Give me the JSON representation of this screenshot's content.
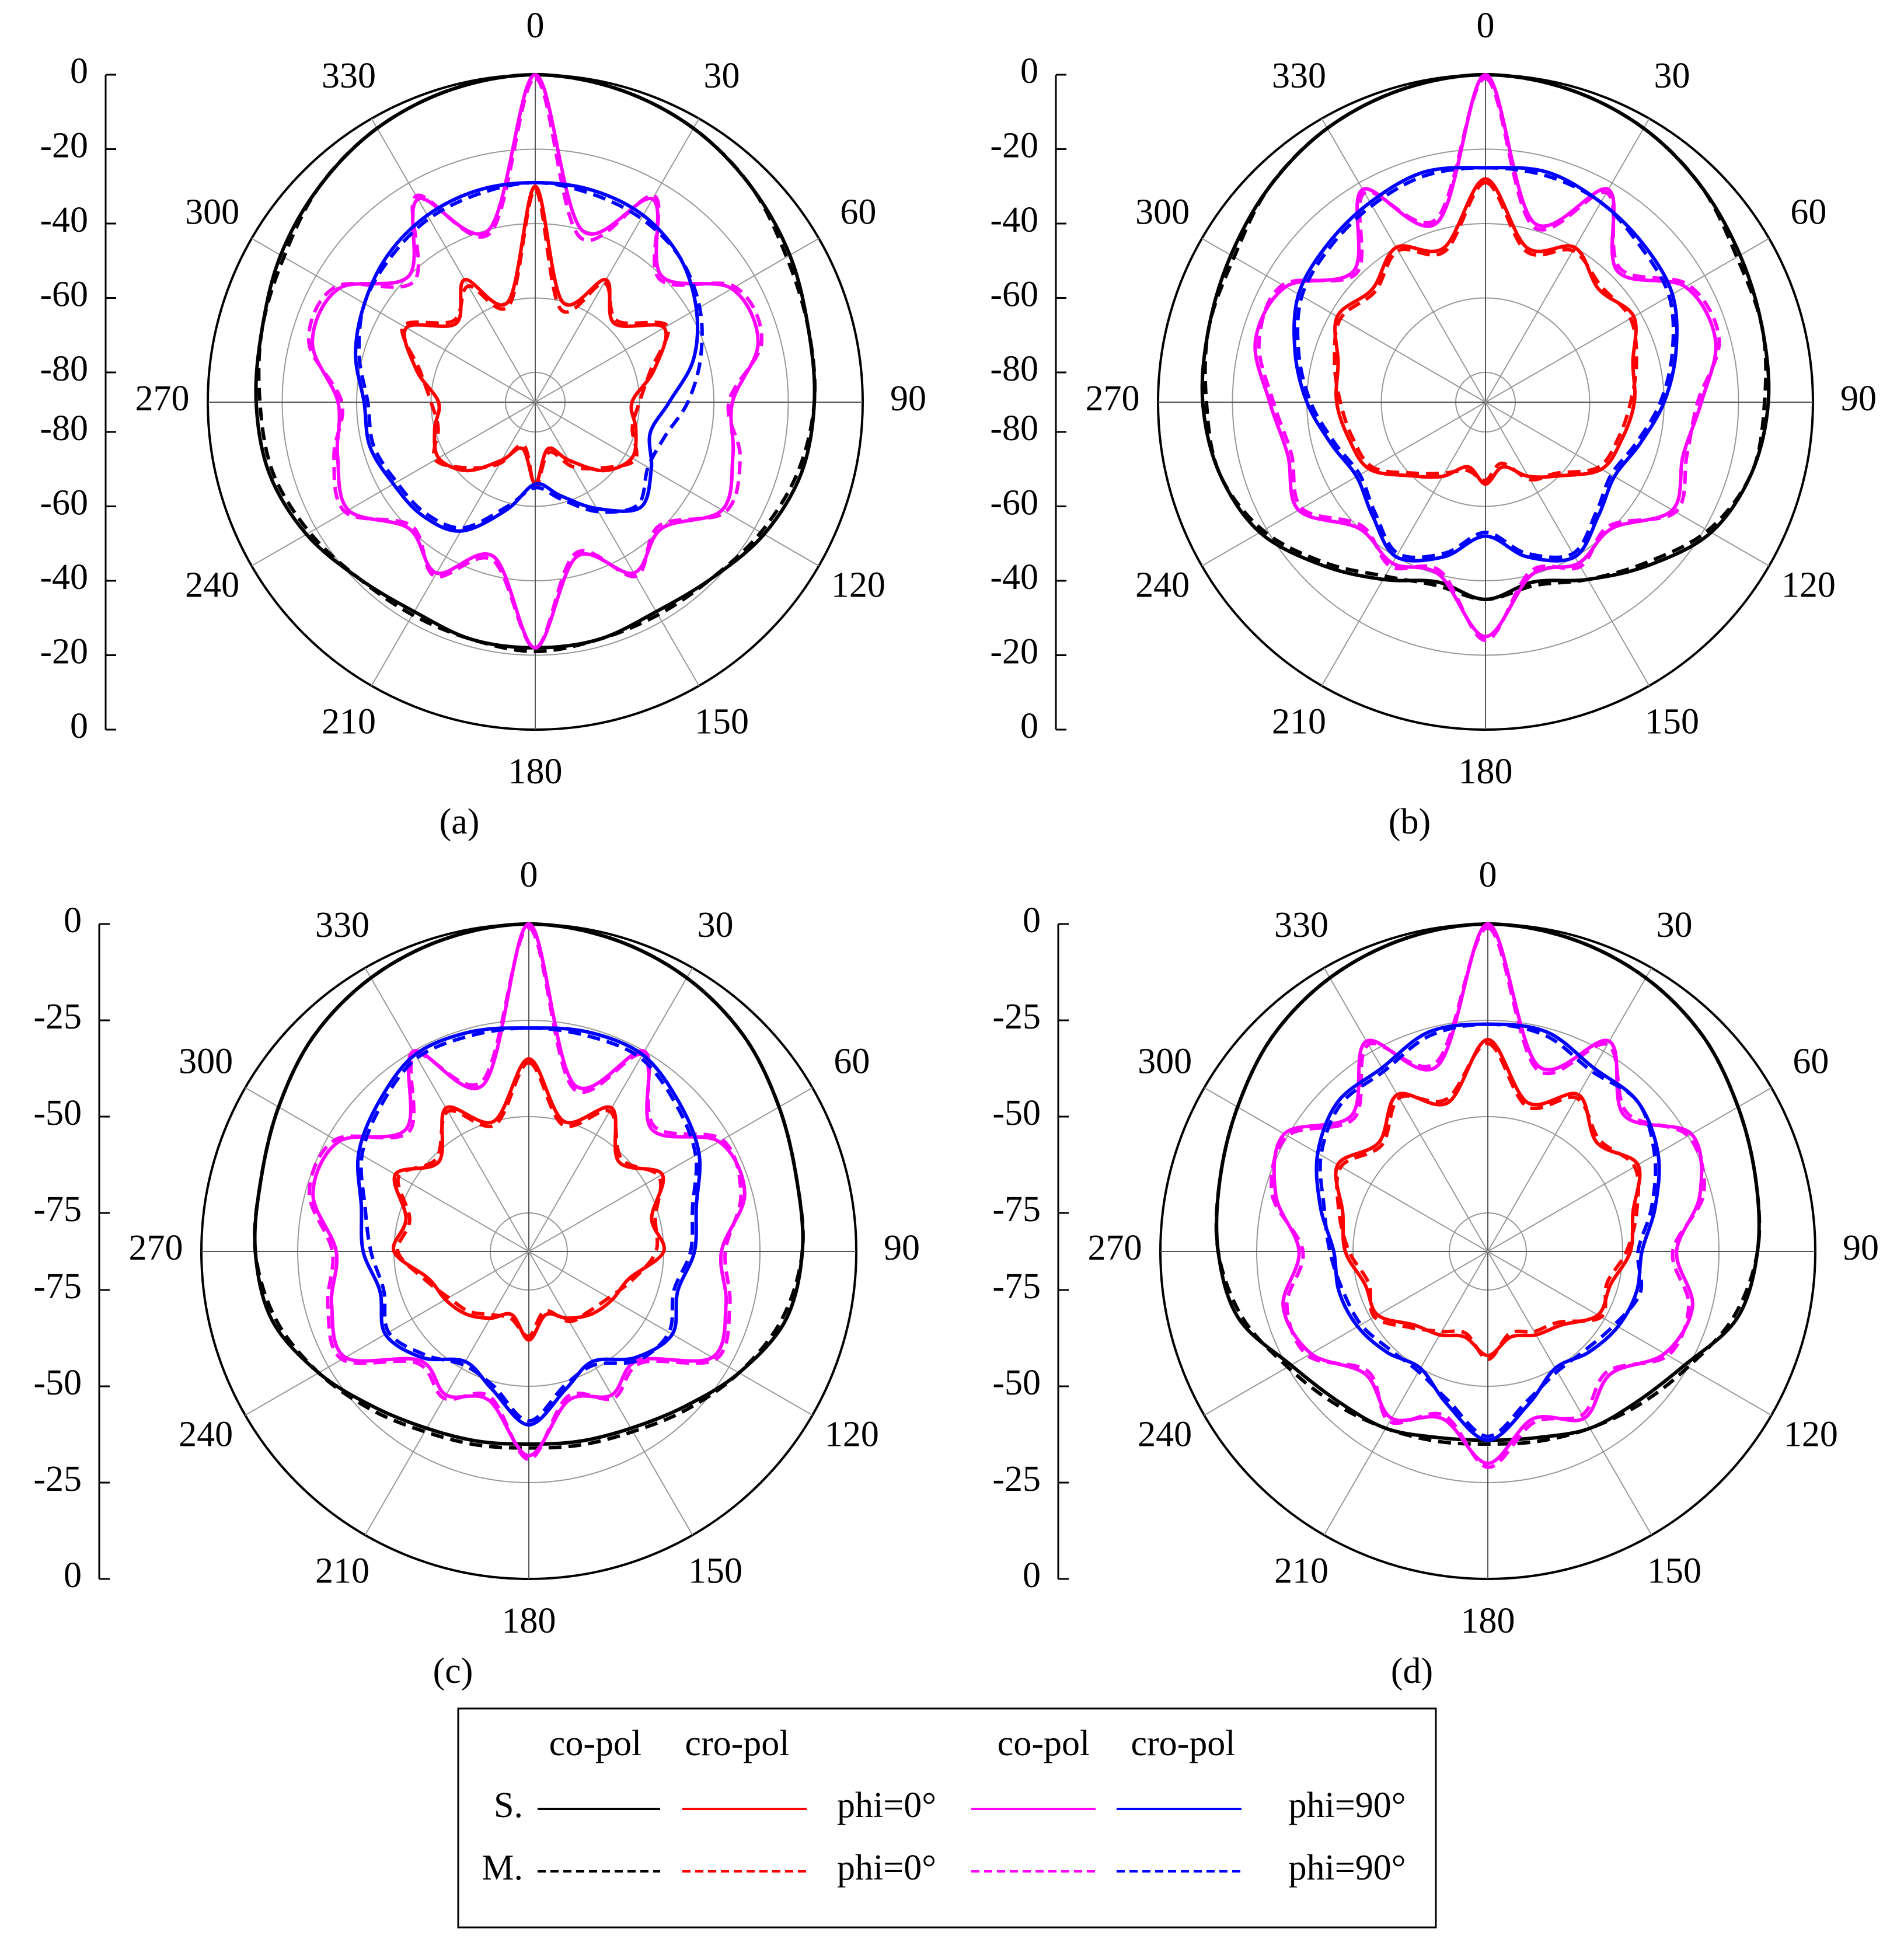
{
  "chart_data": [
    {
      "type": "polar",
      "label": "(a)",
      "rlim": [
        -88,
        0
      ],
      "rticks": [
        0,
        -20,
        -40,
        -60,
        -80
      ],
      "thetaticks": [
        0,
        30,
        60,
        90,
        120,
        150,
        180,
        210,
        240,
        270,
        300,
        330
      ],
      "theta": [
        0,
        15,
        30,
        45,
        60,
        75,
        90,
        105,
        120,
        135,
        150,
        165,
        180,
        195,
        210,
        225,
        240,
        255,
        270,
        285,
        300,
        315,
        330,
        345
      ],
      "series": [
        {
          "color": "#000000",
          "dash": false,
          "values": [
            0,
            -1,
            -3,
            -6,
            -9,
            -12,
            -13,
            -14,
            -17,
            -21,
            -23,
            -22,
            -22,
            -22,
            -23,
            -21,
            -17,
            -14,
            -13,
            -12,
            -9,
            -6,
            -3,
            -1
          ]
        },
        {
          "color": "#000000",
          "dash": true,
          "values": [
            0,
            -1,
            -3,
            -6,
            -10,
            -12,
            -13,
            -15,
            -18,
            -21,
            -22,
            -22,
            -21,
            -22,
            -22,
            -21,
            -18,
            -15,
            -14,
            -12,
            -10,
            -6,
            -3,
            -1
          ]
        },
        {
          "color": "#ff0000",
          "dash": false,
          "values": [
            -30,
            -60,
            -50,
            -58,
            -48,
            -55,
            -62,
            -60,
            -58,
            -62,
            -70,
            -75,
            -66,
            -75,
            -70,
            -62,
            -58,
            -60,
            -62,
            -55,
            -48,
            -58,
            -50,
            -60
          ]
        },
        {
          "color": "#ff0000",
          "dash": true,
          "values": [
            -31,
            -62,
            -51,
            -57,
            -47,
            -56,
            -60,
            -61,
            -57,
            -63,
            -68,
            -74,
            -65,
            -76,
            -69,
            -63,
            -57,
            -61,
            -60,
            -56,
            -47,
            -57,
            -52,
            -61
          ]
        },
        {
          "color": "#ff00ff",
          "dash": false,
          "values": [
            0,
            -40,
            -25,
            -40,
            -27,
            -26,
            -35,
            -33,
            -30,
            -40,
            -35,
            -45,
            -22,
            -45,
            -35,
            -40,
            -30,
            -33,
            -35,
            -26,
            -27,
            -40,
            -25,
            -40
          ]
        },
        {
          "color": "#ff00ff",
          "dash": true,
          "values": [
            -1,
            -42,
            -24,
            -41,
            -26,
            -25,
            -36,
            -31,
            -29,
            -41,
            -34,
            -46,
            -22,
            -44,
            -34,
            -41,
            -29,
            -32,
            -36,
            -25,
            -26,
            -42,
            -24,
            -41
          ]
        },
        {
          "color": "#0000ff",
          "dash": false,
          "values": [
            -29,
            -29,
            -30,
            -33,
            -38,
            -44,
            -52,
            -56,
            -52,
            -48,
            -55,
            -62,
            -66,
            -58,
            -48,
            -45,
            -44,
            -42,
            -42,
            -38,
            -35,
            -32,
            -30,
            -29
          ]
        },
        {
          "color": "#0000ff",
          "dash": true,
          "values": [
            -29,
            -30,
            -31,
            -33,
            -37,
            -42,
            -47,
            -52,
            -53,
            -49,
            -54,
            -61,
            -65,
            -59,
            -49,
            -46,
            -45,
            -43,
            -43,
            -39,
            -35,
            -33,
            -31,
            -30
          ]
        }
      ]
    },
    {
      "type": "polar",
      "label": "(b)",
      "rlim": [
        -88,
        0
      ],
      "rticks": [
        0,
        -20,
        -40,
        -60,
        -80
      ],
      "thetaticks": [
        0,
        30,
        60,
        90,
        120,
        150,
        180,
        210,
        240,
        270,
        300,
        330
      ],
      "theta": [
        0,
        15,
        30,
        45,
        60,
        75,
        90,
        105,
        120,
        135,
        150,
        165,
        180,
        195,
        210,
        225,
        240,
        255,
        270,
        285,
        300,
        315,
        330,
        345
      ],
      "series": [
        {
          "color": "#000000",
          "dash": false,
          "values": [
            0,
            -1,
            -3,
            -6,
            -9,
            -11,
            -12,
            -14,
            -18,
            -26,
            -33,
            -38,
            -35,
            -38,
            -33,
            -26,
            -18,
            -14,
            -12,
            -11,
            -9,
            -6,
            -3,
            -1
          ]
        },
        {
          "color": "#000000",
          "dash": true,
          "values": [
            0,
            -1,
            -3,
            -6,
            -10,
            -11,
            -13,
            -14,
            -19,
            -27,
            -33,
            -37,
            -35,
            -37,
            -34,
            -27,
            -19,
            -14,
            -13,
            -11,
            -10,
            -6,
            -3,
            -1
          ]
        },
        {
          "color": "#ff0000",
          "dash": false,
          "values": [
            -28,
            -45,
            -40,
            -45,
            -42,
            -47,
            -48,
            -50,
            -52,
            -60,
            -65,
            -70,
            -66,
            -70,
            -65,
            -60,
            -52,
            -50,
            -48,
            -47,
            -42,
            -45,
            -40,
            -45
          ]
        },
        {
          "color": "#ff0000",
          "dash": true,
          "values": [
            -29,
            -46,
            -41,
            -44,
            -43,
            -46,
            -49,
            -51,
            -53,
            -61,
            -64,
            -71,
            -67,
            -69,
            -66,
            -61,
            -53,
            -51,
            -49,
            -46,
            -43,
            -46,
            -41,
            -46
          ]
        },
        {
          "color": "#ff00ff",
          "dash": false,
          "values": [
            0,
            -38,
            -22,
            -38,
            -26,
            -24,
            -30,
            -33,
            -30,
            -40,
            -38,
            -40,
            -25,
            -40,
            -38,
            -40,
            -30,
            -33,
            -30,
            -24,
            -26,
            -38,
            -22,
            -38
          ]
        },
        {
          "color": "#ff00ff",
          "dash": true,
          "values": [
            -1,
            -39,
            -23,
            -37,
            -25,
            -23,
            -31,
            -32,
            -29,
            -41,
            -37,
            -41,
            -24,
            -41,
            -37,
            -41,
            -31,
            -34,
            -31,
            -25,
            -25,
            -39,
            -23,
            -37
          ]
        },
        {
          "color": "#0000ff",
          "dash": false,
          "values": [
            -25,
            -24,
            -26,
            -28,
            -30,
            -35,
            -40,
            -45,
            -48,
            -45,
            -40,
            -45,
            -52,
            -45,
            -40,
            -45,
            -48,
            -45,
            -40,
            -35,
            -30,
            -28,
            -26,
            -24
          ]
        },
        {
          "color": "#0000ff",
          "dash": true,
          "values": [
            -25,
            -25,
            -26,
            -29,
            -31,
            -36,
            -41,
            -46,
            -49,
            -46,
            -41,
            -46,
            -53,
            -46,
            -41,
            -46,
            -49,
            -46,
            -41,
            -36,
            -31,
            -29,
            -27,
            -25
          ]
        }
      ]
    },
    {
      "type": "polar",
      "label": "(c)",
      "rlim": [
        -85,
        0
      ],
      "rticks": [
        0,
        -25,
        -50,
        -75
      ],
      "thetaticks": [
        0,
        30,
        60,
        90,
        120,
        150,
        180,
        210,
        240,
        270,
        300,
        330
      ],
      "theta": [
        0,
        15,
        30,
        45,
        60,
        75,
        90,
        105,
        120,
        135,
        150,
        165,
        180,
        195,
        210,
        225,
        240,
        255,
        270,
        285,
        300,
        315,
        330,
        345
      ],
      "series": [
        {
          "color": "#000000",
          "dash": false,
          "values": [
            0,
            -1,
            -3,
            -6,
            -10,
            -13,
            -14,
            -16,
            -22,
            -28,
            -32,
            -34,
            -35,
            -34,
            -32,
            -28,
            -22,
            -16,
            -14,
            -13,
            -10,
            -6,
            -3,
            -1
          ]
        },
        {
          "color": "#000000",
          "dash": true,
          "values": [
            0,
            -1,
            -3,
            -6,
            -10,
            -13,
            -14,
            -17,
            -22,
            -27,
            -31,
            -33,
            -34,
            -33,
            -31,
            -27,
            -22,
            -17,
            -14,
            -13,
            -10,
            -6,
            -3,
            -1
          ]
        },
        {
          "color": "#ff0000",
          "dash": false,
          "values": [
            -35,
            -50,
            -42,
            -52,
            -45,
            -52,
            -50,
            -58,
            -60,
            -62,
            -65,
            -68,
            -62,
            -68,
            -65,
            -62,
            -60,
            -58,
            -50,
            -52,
            -45,
            -52,
            -42,
            -50
          ]
        },
        {
          "color": "#ff0000",
          "dash": true,
          "values": [
            -36,
            -51,
            -43,
            -51,
            -46,
            -51,
            -52,
            -57,
            -61,
            -63,
            -64,
            -69,
            -63,
            -67,
            -66,
            -63,
            -61,
            -57,
            -51,
            -53,
            -46,
            -51,
            -43,
            -51
          ]
        },
        {
          "color": "#ff00ff",
          "dash": false,
          "values": [
            0,
            -40,
            -25,
            -40,
            -28,
            -27,
            -35,
            -32,
            -30,
            -45,
            -42,
            -45,
            -32,
            -45,
            -42,
            -45,
            -30,
            -32,
            -35,
            -27,
            -28,
            -40,
            -25,
            -40
          ]
        },
        {
          "color": "#ff00ff",
          "dash": true,
          "values": [
            -1,
            -41,
            -26,
            -39,
            -27,
            -28,
            -34,
            -31,
            -29,
            -44,
            -41,
            -46,
            -31,
            -46,
            -41,
            -44,
            -29,
            -31,
            -34,
            -26,
            -27,
            -41,
            -26,
            -39
          ]
        },
        {
          "color": "#0000ff",
          "dash": false,
          "values": [
            -27,
            -26,
            -26,
            -30,
            -34,
            -40,
            -42,
            -45,
            -42,
            -46,
            -52,
            -48,
            -40,
            -48,
            -52,
            -46,
            -42,
            -45,
            -42,
            -40,
            -34,
            -30,
            -26,
            -26
          ]
        },
        {
          "color": "#0000ff",
          "dash": true,
          "values": [
            -27,
            -27,
            -27,
            -31,
            -35,
            -41,
            -43,
            -46,
            -43,
            -45,
            -51,
            -49,
            -41,
            -49,
            -51,
            -47,
            -43,
            -46,
            -44,
            -41,
            -35,
            -31,
            -27,
            -27
          ]
        }
      ]
    },
    {
      "type": "polar",
      "label": "(d)",
      "rlim": [
        -85,
        0
      ],
      "rticks": [
        0,
        -25,
        -50,
        -75
      ],
      "thetaticks": [
        0,
        30,
        60,
        90,
        120,
        150,
        180,
        210,
        240,
        270,
        300,
        330
      ],
      "theta": [
        0,
        15,
        30,
        45,
        60,
        75,
        90,
        105,
        120,
        135,
        150,
        165,
        180,
        195,
        210,
        225,
        240,
        255,
        270,
        285,
        300,
        315,
        330,
        345
      ],
      "series": [
        {
          "color": "#000000",
          "dash": false,
          "values": [
            0,
            -1,
            -3,
            -6,
            -10,
            -13,
            -15,
            -18,
            -26,
            -30,
            -32,
            -35,
            -36,
            -35,
            -32,
            -30,
            -26,
            -18,
            -15,
            -13,
            -10,
            -6,
            -3,
            -1
          ]
        },
        {
          "color": "#000000",
          "dash": true,
          "values": [
            0,
            -1,
            -3,
            -6,
            -10,
            -13,
            -15,
            -19,
            -25,
            -29,
            -32,
            -34,
            -35,
            -34,
            -32,
            -29,
            -25,
            -19,
            -15,
            -13,
            -10,
            -6,
            -3,
            -1
          ]
        },
        {
          "color": "#ff0000",
          "dash": false,
          "values": [
            -30,
            -45,
            -38,
            -45,
            -40,
            -46,
            -48,
            -52,
            -52,
            -58,
            -60,
            -62,
            -58,
            -62,
            -60,
            -58,
            -52,
            -52,
            -48,
            -46,
            -40,
            -45,
            -38,
            -45
          ]
        },
        {
          "color": "#ff0000",
          "dash": true,
          "values": [
            -31,
            -46,
            -39,
            -44,
            -41,
            -45,
            -49,
            -53,
            -51,
            -59,
            -61,
            -63,
            -57,
            -63,
            -61,
            -57,
            -51,
            -53,
            -49,
            -45,
            -41,
            -46,
            -39,
            -44
          ]
        },
        {
          "color": "#ff00ff",
          "dash": false,
          "values": [
            0,
            -35,
            -22,
            -35,
            -24,
            -28,
            -36,
            -30,
            -32,
            -40,
            -35,
            -40,
            -30,
            -40,
            -35,
            -40,
            -32,
            -30,
            -36,
            -28,
            -24,
            -35,
            -22,
            -35
          ]
        },
        {
          "color": "#ff00ff",
          "dash": true,
          "values": [
            -1,
            -36,
            -23,
            -34,
            -25,
            -27,
            -37,
            -31,
            -31,
            -41,
            -36,
            -39,
            -29,
            -41,
            -34,
            -41,
            -31,
            -31,
            -37,
            -27,
            -25,
            -36,
            -23,
            -34
          ]
        },
        {
          "color": "#0000ff",
          "dash": false,
          "values": [
            -26,
            -26,
            -30,
            -30,
            -34,
            -40,
            -45,
            -45,
            -46,
            -48,
            -50,
            -44,
            -36,
            -44,
            -50,
            -48,
            -46,
            -45,
            -45,
            -40,
            -34,
            -30,
            -30,
            -26
          ]
        },
        {
          "color": "#0000ff",
          "dash": true,
          "values": [
            -26,
            -27,
            -31,
            -30,
            -35,
            -41,
            -46,
            -44,
            -47,
            -49,
            -49,
            -45,
            -37,
            -45,
            -49,
            -49,
            -47,
            -46,
            -44,
            -41,
            -35,
            -31,
            -31,
            -27
          ]
        }
      ]
    }
  ],
  "legend": {
    "headers": [
      "co-pol",
      "cro-pol",
      "co-pol",
      "cro-pol"
    ],
    "rows": [
      "S.",
      "M."
    ],
    "phi": [
      "phi=0°",
      "phi=90°"
    ]
  }
}
